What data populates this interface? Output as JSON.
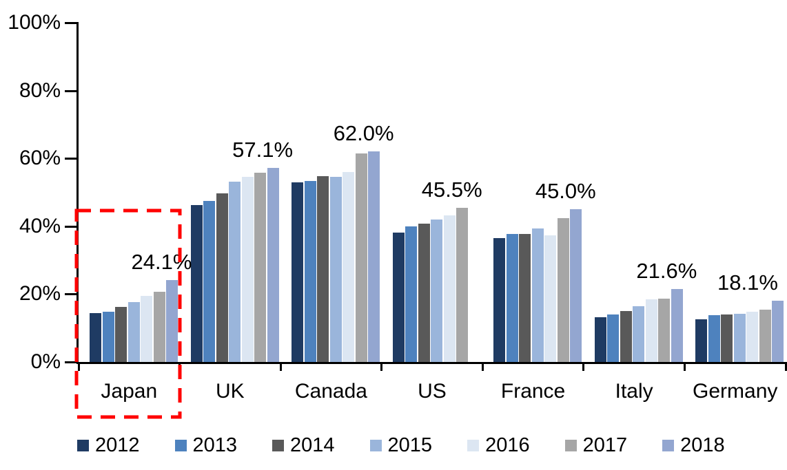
{
  "chart_data": {
    "type": "bar",
    "title": "",
    "categories": [
      "Japan",
      "UK",
      "Canada",
      "US",
      "France",
      "Italy",
      "Germany"
    ],
    "series": [
      {
        "name": "2012",
        "color": "#1F3B63",
        "values": [
          14.5,
          46.2,
          52.9,
          38.2,
          36.6,
          13.2,
          12.6
        ]
      },
      {
        "name": "2013",
        "color": "#4E82BE",
        "values": [
          14.8,
          47.5,
          53.3,
          39.9,
          37.8,
          13.9,
          13.7
        ]
      },
      {
        "name": "2014",
        "color": "#595959",
        "values": [
          16.3,
          49.7,
          54.7,
          40.8,
          37.7,
          15.0,
          14.0
        ]
      },
      {
        "name": "2015",
        "color": "#9AB5DB",
        "values": [
          17.7,
          53.1,
          54.5,
          42.0,
          39.3,
          16.5,
          14.3
        ]
      },
      {
        "name": "2016",
        "color": "#DCE6F2",
        "values": [
          19.5,
          54.5,
          56.0,
          43.3,
          37.3,
          18.5,
          14.8
        ]
      },
      {
        "name": "2017",
        "color": "#A6A6A6",
        "values": [
          20.7,
          55.7,
          61.5,
          45.5,
          42.3,
          18.7,
          15.4
        ]
      },
      {
        "name": "2018",
        "color": "#93A6D0",
        "values": [
          24.1,
          57.1,
          62.0,
          null,
          45.0,
          21.6,
          18.1
        ]
      }
    ],
    "data_labels": [
      "24.1%",
      "57.1%",
      "62.0%",
      "45.5%",
      "45.0%",
      "21.6%",
      "18.1%"
    ],
    "ylim": [
      0,
      100
    ],
    "yticks": [
      {
        "label": "0%",
        "value": 0
      },
      {
        "label": "20%",
        "value": 20
      },
      {
        "label": "40%",
        "value": 40
      },
      {
        "label": "60%",
        "value": 60
      },
      {
        "label": "80%",
        "value": 80
      },
      {
        "label": "100%",
        "value": 100
      }
    ],
    "grid": false,
    "legend": {
      "position": "bottom",
      "entries": [
        "2012",
        "2013",
        "2014",
        "2015",
        "2016",
        "2017",
        "2018"
      ]
    },
    "annotation": {
      "highlighted_category": "Japan",
      "shape": "dashed-rectangle",
      "color": "#FF0000"
    }
  }
}
